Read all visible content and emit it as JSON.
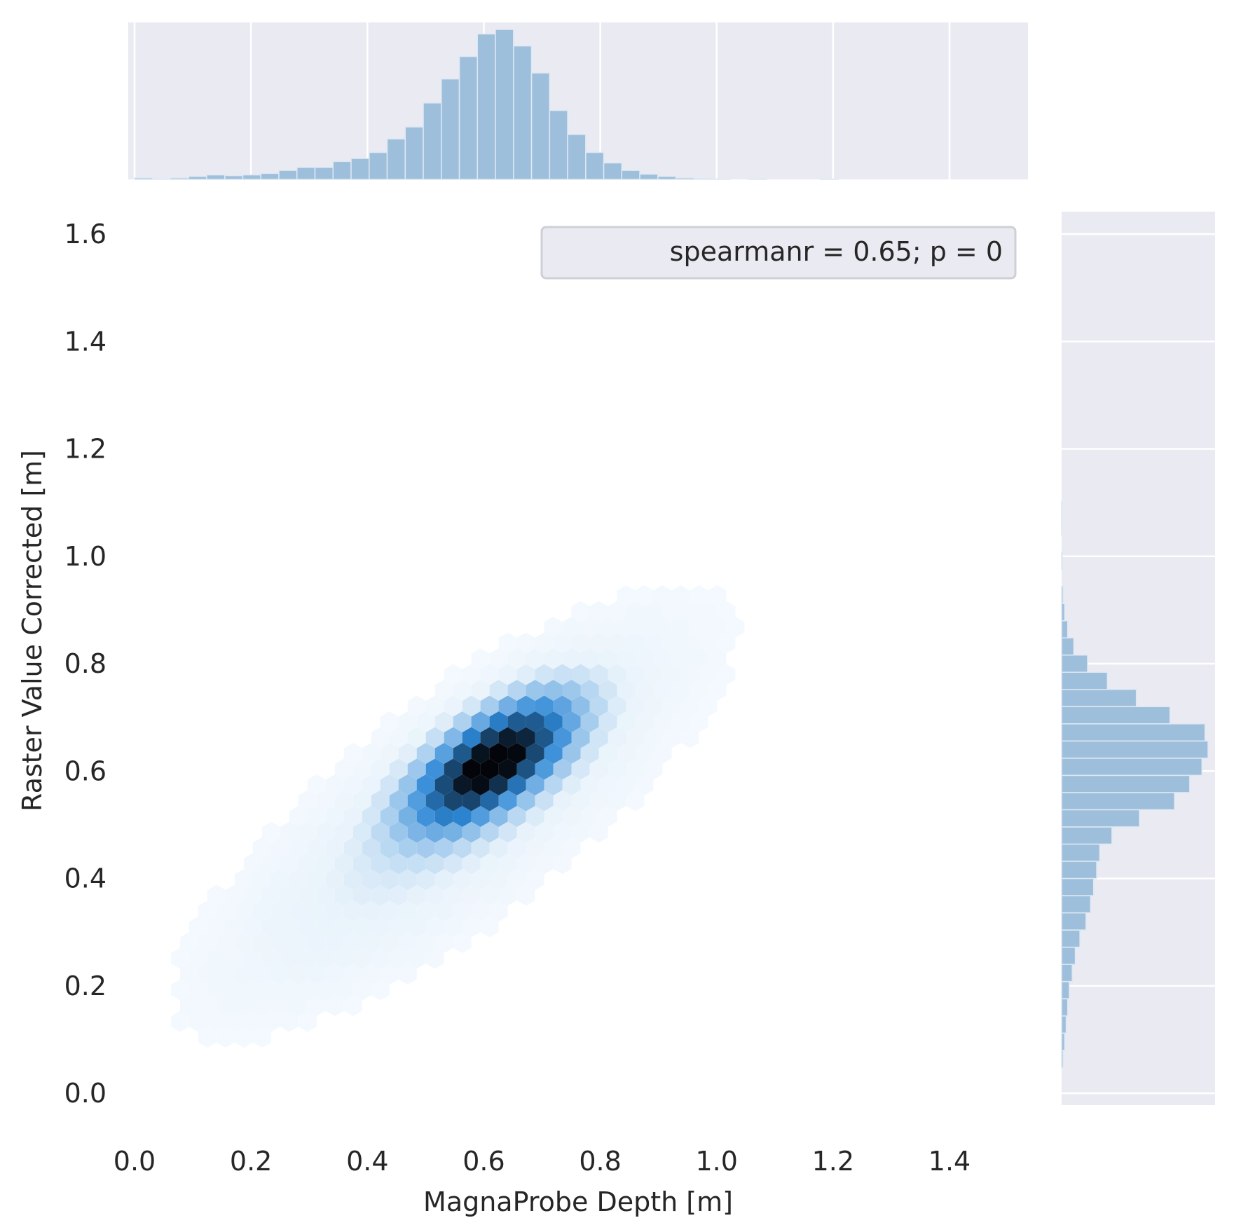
{
  "chart_data": {
    "type": "hexbin",
    "title": "",
    "xlabel": "MagnaProbe Depth [m]",
    "ylabel": "Raster Value Corrected [m]",
    "xlim": [
      -0.01,
      1.56
    ],
    "ylim": [
      -0.08,
      1.65
    ],
    "x_ticks": [
      0.0,
      0.2,
      0.4,
      0.6,
      0.8,
      1.0,
      1.2,
      1.4
    ],
    "x_tick_labels": [
      "0.0",
      "0.2",
      "0.4",
      "0.6",
      "0.8",
      "1.0",
      "1.2",
      "1.4"
    ],
    "y_ticks": [
      0.0,
      0.2,
      0.4,
      0.6,
      0.8,
      1.0,
      1.2,
      1.4,
      1.6
    ],
    "y_tick_labels": [
      "0.0",
      "0.2",
      "0.4",
      "0.6",
      "0.8",
      "1.0",
      "1.2",
      "1.4",
      "1.6"
    ],
    "legend": {
      "text": "spearmanr = 0.65; p = 0",
      "placement": "upper-right"
    },
    "density_model": {
      "center_x": 0.615,
      "center_y": 0.615,
      "sigma_x": 0.085,
      "sigma_y": 0.075,
      "correlation": 0.65,
      "tail_weight": 0.12
    },
    "colors": {
      "hexbin_max": "#03050a",
      "hexbin_mid": "#2e88d6",
      "hexbin_low": "#e9f3fb",
      "histogram": "#9ebfdc",
      "margin_background": "#eaeaf2",
      "grid": "#ffffff"
    },
    "x_marginal": {
      "bin_width": 0.031,
      "bins": [
        {
          "x": 0.0,
          "count": 1
        },
        {
          "x": 0.031,
          "count": 0.3
        },
        {
          "x": 0.062,
          "count": 1
        },
        {
          "x": 0.093,
          "count": 2
        },
        {
          "x": 0.124,
          "count": 3
        },
        {
          "x": 0.155,
          "count": 2.5
        },
        {
          "x": 0.186,
          "count": 3
        },
        {
          "x": 0.217,
          "count": 4
        },
        {
          "x": 0.248,
          "count": 6
        },
        {
          "x": 0.279,
          "count": 8
        },
        {
          "x": 0.31,
          "count": 8
        },
        {
          "x": 0.341,
          "count": 12
        },
        {
          "x": 0.372,
          "count": 14
        },
        {
          "x": 0.403,
          "count": 18
        },
        {
          "x": 0.434,
          "count": 27
        },
        {
          "x": 0.465,
          "count": 35
        },
        {
          "x": 0.496,
          "count": 51
        },
        {
          "x": 0.527,
          "count": 67
        },
        {
          "x": 0.558,
          "count": 82
        },
        {
          "x": 0.589,
          "count": 97
        },
        {
          "x": 0.62,
          "count": 100
        },
        {
          "x": 0.651,
          "count": 89
        },
        {
          "x": 0.682,
          "count": 71
        },
        {
          "x": 0.713,
          "count": 46
        },
        {
          "x": 0.744,
          "count": 30
        },
        {
          "x": 0.775,
          "count": 18
        },
        {
          "x": 0.806,
          "count": 11
        },
        {
          "x": 0.837,
          "count": 6
        },
        {
          "x": 0.868,
          "count": 3.5
        },
        {
          "x": 0.899,
          "count": 2
        },
        {
          "x": 0.93,
          "count": 1
        },
        {
          "x": 0.961,
          "count": 0.6
        },
        {
          "x": 0.992,
          "count": 0.3
        },
        {
          "x": 1.054,
          "count": 0.3
        },
        {
          "x": 1.178,
          "count": 0.3
        }
      ]
    },
    "y_marginal": {
      "bin_width": 0.032,
      "bins": [
        {
          "y": 0.048,
          "count": 1
        },
        {
          "y": 0.08,
          "count": 2
        },
        {
          "y": 0.112,
          "count": 3
        },
        {
          "y": 0.144,
          "count": 4
        },
        {
          "y": 0.176,
          "count": 5
        },
        {
          "y": 0.208,
          "count": 7
        },
        {
          "y": 0.24,
          "count": 9
        },
        {
          "y": 0.272,
          "count": 12
        },
        {
          "y": 0.304,
          "count": 16
        },
        {
          "y": 0.336,
          "count": 19
        },
        {
          "y": 0.368,
          "count": 21
        },
        {
          "y": 0.4,
          "count": 23
        },
        {
          "y": 0.432,
          "count": 25
        },
        {
          "y": 0.464,
          "count": 33
        },
        {
          "y": 0.496,
          "count": 51
        },
        {
          "y": 0.528,
          "count": 74
        },
        {
          "y": 0.56,
          "count": 84
        },
        {
          "y": 0.592,
          "count": 92
        },
        {
          "y": 0.624,
          "count": 96
        },
        {
          "y": 0.656,
          "count": 94
        },
        {
          "y": 0.688,
          "count": 71
        },
        {
          "y": 0.72,
          "count": 49
        },
        {
          "y": 0.752,
          "count": 30
        },
        {
          "y": 0.784,
          "count": 17
        },
        {
          "y": 0.816,
          "count": 8
        },
        {
          "y": 0.848,
          "count": 4
        },
        {
          "y": 0.88,
          "count": 2
        },
        {
          "y": 0.912,
          "count": 1
        },
        {
          "y": 0.976,
          "count": 0.5
        },
        {
          "y": 1.04,
          "count": 0.3
        },
        {
          "y": 1.07,
          "count": 0.3
        }
      ]
    }
  }
}
